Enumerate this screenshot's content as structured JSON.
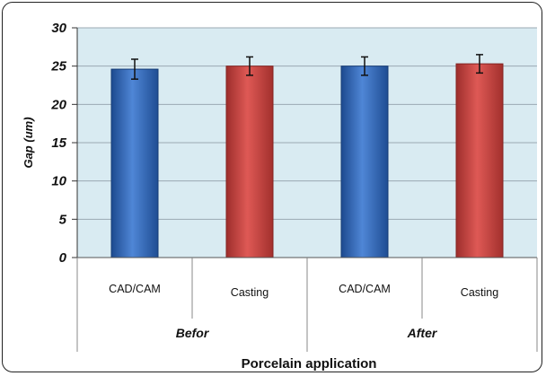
{
  "chart_data": {
    "type": "bar",
    "title": "",
    "ylabel": "Gap (um)",
    "xlabel": "Porcelain application",
    "ylim": [
      0,
      30
    ],
    "yticks": [
      0,
      5,
      10,
      15,
      20,
      25,
      30
    ],
    "grid": true,
    "groups": [
      "Befor",
      "After"
    ],
    "categories": [
      "CAD/CAM",
      "Casting",
      "CAD/CAM",
      "Casting"
    ],
    "values": [
      24.6,
      25.0,
      25.0,
      25.3
    ],
    "errors": [
      1.3,
      1.2,
      1.2,
      1.2
    ],
    "colors": {
      "CAD/CAM": "#2f65b5",
      "Casting": "#c84340",
      "plot_background": "#d9ebf2",
      "grid": "#9aa9b3"
    }
  }
}
